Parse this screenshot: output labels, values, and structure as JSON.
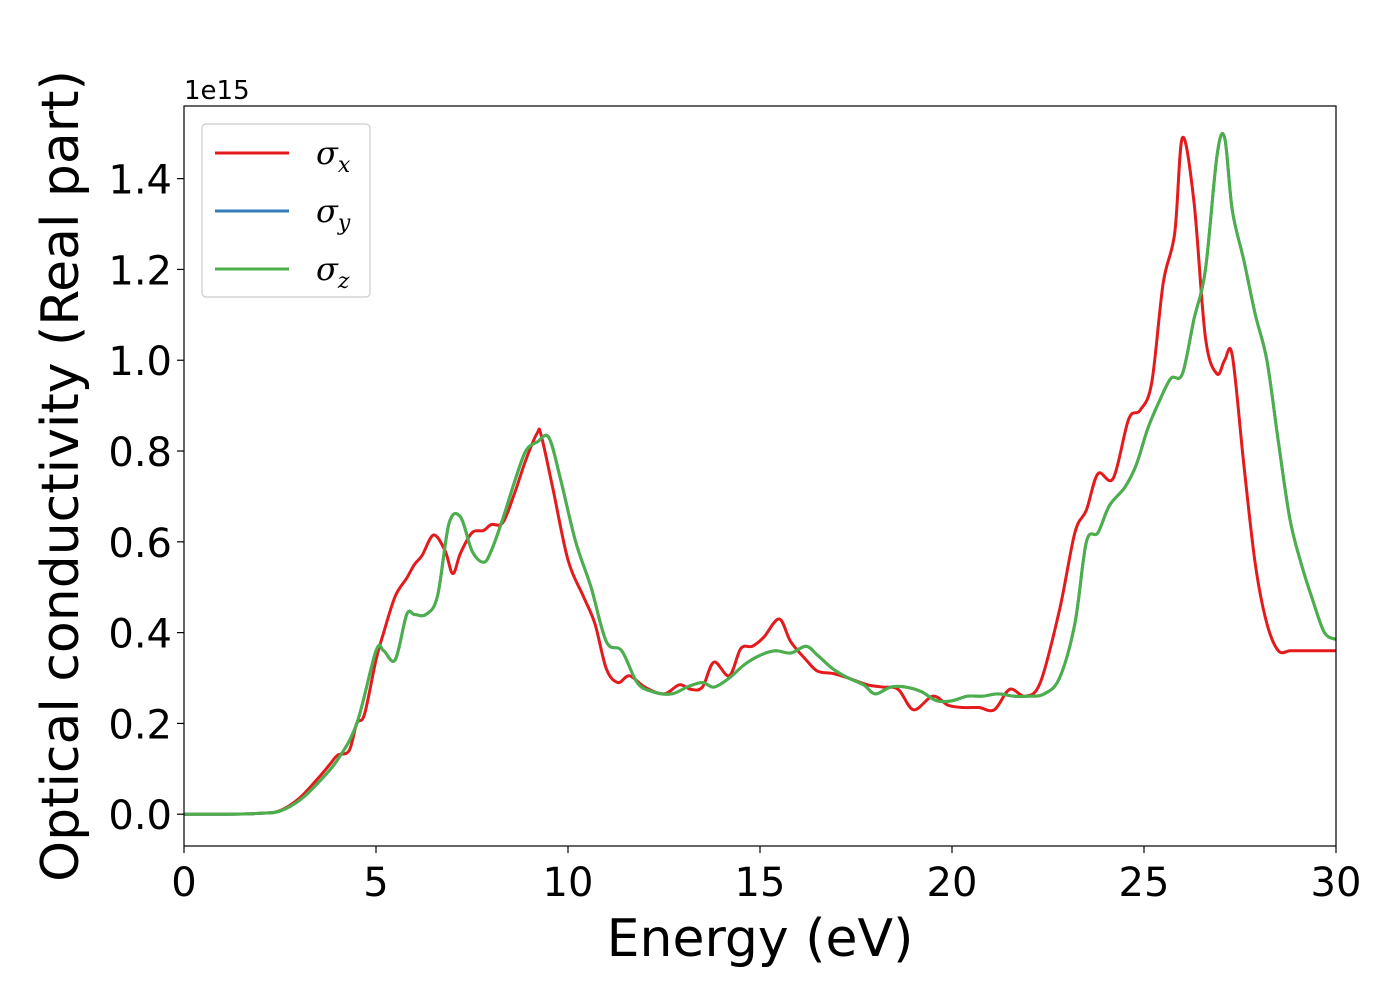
{
  "chart_data": {
    "type": "line",
    "title": "",
    "xlabel": "Energy (eV)",
    "ylabel": "Optical conductivity (Real part)",
    "y_offset_label": "1e15",
    "xlim": [
      0,
      30
    ],
    "ylim": [
      -0.07,
      1.56
    ],
    "xticks": [
      0,
      5,
      10,
      15,
      20,
      25,
      30
    ],
    "xtick_labels": [
      "0",
      "5",
      "10",
      "15",
      "20",
      "25",
      "30"
    ],
    "yticks": [
      0.0,
      0.2,
      0.4,
      0.6,
      0.8,
      1.0,
      1.2,
      1.4
    ],
    "ytick_labels": [
      "0.0",
      "0.2",
      "0.4",
      "0.6",
      "0.8",
      "1.0",
      "1.2",
      "1.4"
    ],
    "grid": false,
    "legend_position": "top-left",
    "series": [
      {
        "name": "σx",
        "symbol": "σ",
        "subscript": "x",
        "color": "#e41a1c",
        "x": [
          0,
          1,
          2,
          2.5,
          3,
          3.5,
          3.8,
          4,
          4.3,
          4.5,
          4.7,
          5,
          5.2,
          5.5,
          5.8,
          6,
          6.2,
          6.5,
          6.8,
          7,
          7.2,
          7.5,
          7.8,
          8,
          8.3,
          8.6,
          8.9,
          9.2,
          9.3,
          9.6,
          10,
          10.4,
          10.7,
          11,
          11.3,
          11.6,
          12,
          12.5,
          12.9,
          13.2,
          13.5,
          13.8,
          14.2,
          14.5,
          14.8,
          15.1,
          15.5,
          15.8,
          16.2,
          16.5,
          16.9,
          17.3,
          17.8,
          18.2,
          18.6,
          19,
          19.5,
          19.9,
          20.3,
          20.7,
          21.1,
          21.5,
          21.9,
          22.3,
          22.8,
          23.2,
          23.5,
          23.8,
          24.2,
          24.6,
          24.9,
          25.2,
          25.5,
          25.8,
          26,
          26.3,
          26.6,
          26.9,
          27.1,
          27.3,
          27.6,
          27.9,
          28.2,
          28.5,
          28.8,
          29.1,
          29.4,
          29.7,
          30
        ],
        "values": [
          0,
          0,
          0.002,
          0.008,
          0.035,
          0.08,
          0.11,
          0.13,
          0.14,
          0.2,
          0.22,
          0.34,
          0.4,
          0.48,
          0.52,
          0.55,
          0.57,
          0.615,
          0.58,
          0.53,
          0.575,
          0.62,
          0.625,
          0.638,
          0.642,
          0.705,
          0.78,
          0.84,
          0.835,
          0.72,
          0.56,
          0.48,
          0.42,
          0.32,
          0.29,
          0.305,
          0.28,
          0.265,
          0.285,
          0.275,
          0.28,
          0.335,
          0.305,
          0.365,
          0.37,
          0.39,
          0.43,
          0.38,
          0.34,
          0.315,
          0.31,
          0.3,
          0.285,
          0.28,
          0.275,
          0.23,
          0.26,
          0.24,
          0.235,
          0.235,
          0.23,
          0.275,
          0.26,
          0.29,
          0.45,
          0.62,
          0.67,
          0.75,
          0.74,
          0.87,
          0.89,
          0.95,
          1.17,
          1.28,
          1.49,
          1.35,
          1.05,
          0.97,
          1.0,
          1.01,
          0.77,
          0.55,
          0.42,
          0.36,
          0.36,
          0.36,
          0.36,
          0.36,
          0.36
        ]
      },
      {
        "name": "σy",
        "symbol": "σ",
        "subscript": "y",
        "color": "#377eb8",
        "x": [
          0,
          1,
          2,
          2.5,
          3,
          3.5,
          4,
          4.5,
          5,
          5.2,
          5.5,
          5.8,
          6,
          6.3,
          6.6,
          6.9,
          7.2,
          7.5,
          7.8,
          8,
          8.3,
          8.6,
          8.9,
          9.2,
          9.5,
          9.8,
          10.2,
          10.6,
          11,
          11.4,
          11.8,
          12.2,
          12.7,
          13.1,
          13.5,
          13.8,
          14.2,
          14.6,
          15,
          15.4,
          15.8,
          16.2,
          16.5,
          16.9,
          17.3,
          17.7,
          18,
          18.4,
          18.8,
          19.2,
          19.6,
          20,
          20.4,
          20.8,
          21.2,
          21.6,
          22,
          22.4,
          22.8,
          23.2,
          23.5,
          23.8,
          24.1,
          24.5,
          24.8,
          25.1,
          25.4,
          25.7,
          26,
          26.3,
          26.6,
          26.9,
          27.1,
          27.3,
          27.6,
          27.9,
          28.2,
          28.5,
          28.8,
          29.1,
          29.4,
          29.7,
          30
        ],
        "values": [
          0,
          0,
          0.002,
          0.007,
          0.03,
          0.07,
          0.12,
          0.2,
          0.36,
          0.36,
          0.34,
          0.44,
          0.44,
          0.44,
          0.48,
          0.64,
          0.655,
          0.58,
          0.555,
          0.58,
          0.65,
          0.73,
          0.8,
          0.82,
          0.83,
          0.74,
          0.6,
          0.5,
          0.38,
          0.36,
          0.29,
          0.27,
          0.265,
          0.28,
          0.29,
          0.28,
          0.3,
          0.33,
          0.35,
          0.36,
          0.355,
          0.37,
          0.35,
          0.32,
          0.3,
          0.285,
          0.265,
          0.28,
          0.28,
          0.27,
          0.25,
          0.25,
          0.26,
          0.26,
          0.265,
          0.26,
          0.26,
          0.265,
          0.3,
          0.42,
          0.6,
          0.62,
          0.68,
          0.72,
          0.77,
          0.85,
          0.91,
          0.96,
          0.97,
          1.09,
          1.2,
          1.45,
          1.49,
          1.33,
          1.22,
          1.1,
          1.0,
          0.82,
          0.65,
          0.55,
          0.47,
          0.4,
          0.385
        ]
      },
      {
        "name": "σz",
        "symbol": "σ",
        "subscript": "z",
        "color": "#4daf4a",
        "x": [
          0,
          1,
          2,
          2.5,
          3,
          3.5,
          4,
          4.5,
          5,
          5.2,
          5.5,
          5.8,
          6,
          6.3,
          6.6,
          6.9,
          7.2,
          7.5,
          7.8,
          8,
          8.3,
          8.6,
          8.9,
          9.2,
          9.5,
          9.8,
          10.2,
          10.6,
          11,
          11.4,
          11.8,
          12.2,
          12.7,
          13.1,
          13.5,
          13.8,
          14.2,
          14.6,
          15,
          15.4,
          15.8,
          16.2,
          16.5,
          16.9,
          17.3,
          17.7,
          18,
          18.4,
          18.8,
          19.2,
          19.6,
          20,
          20.4,
          20.8,
          21.2,
          21.6,
          22,
          22.4,
          22.8,
          23.2,
          23.5,
          23.8,
          24.1,
          24.5,
          24.8,
          25.1,
          25.4,
          25.7,
          26,
          26.3,
          26.6,
          26.9,
          27.1,
          27.3,
          27.6,
          27.9,
          28.2,
          28.5,
          28.8,
          29.1,
          29.4,
          29.7,
          30
        ],
        "values": [
          0,
          0,
          0.002,
          0.007,
          0.03,
          0.07,
          0.12,
          0.2,
          0.36,
          0.36,
          0.34,
          0.44,
          0.44,
          0.44,
          0.48,
          0.64,
          0.655,
          0.58,
          0.555,
          0.58,
          0.65,
          0.73,
          0.8,
          0.82,
          0.83,
          0.74,
          0.6,
          0.5,
          0.38,
          0.36,
          0.29,
          0.27,
          0.265,
          0.28,
          0.29,
          0.28,
          0.3,
          0.33,
          0.35,
          0.36,
          0.355,
          0.37,
          0.35,
          0.32,
          0.3,
          0.285,
          0.265,
          0.28,
          0.28,
          0.27,
          0.25,
          0.25,
          0.26,
          0.26,
          0.265,
          0.26,
          0.26,
          0.265,
          0.3,
          0.42,
          0.6,
          0.62,
          0.68,
          0.72,
          0.77,
          0.85,
          0.91,
          0.96,
          0.97,
          1.09,
          1.2,
          1.45,
          1.49,
          1.33,
          1.22,
          1.1,
          1.0,
          0.82,
          0.65,
          0.55,
          0.47,
          0.4,
          0.385
        ]
      }
    ]
  }
}
